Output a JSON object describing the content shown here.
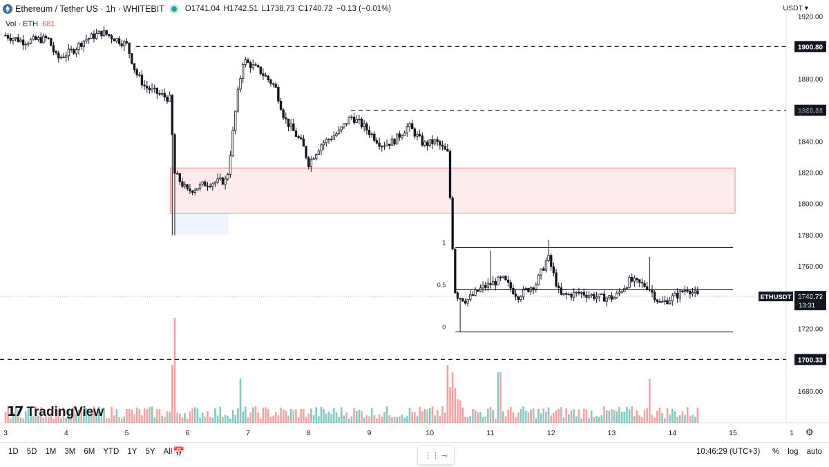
{
  "header": {
    "symbol_title": "Ethereum / Tether US · 1h · WHITEBIT",
    "ohlc": {
      "o": "O1741.04",
      "h": "H1742.51",
      "l": "L1738.73",
      "c": "C1740.72",
      "chg": "−0.13 (−0.01%)"
    }
  },
  "volume_label": {
    "label": "Vol · ETH",
    "value": "681"
  },
  "currency_label": "USDT ▾",
  "logo_text": "TradingView",
  "toolbar": {
    "ranges": [
      "1D",
      "5D",
      "1M",
      "3M",
      "6M",
      "YTD",
      "1Y",
      "5Y",
      "All"
    ],
    "time": "10:46:29 (UTC+3)",
    "options": [
      "%",
      "log",
      "auto"
    ]
  },
  "colors": {
    "up": "#26a69a",
    "down": "#ef5350",
    "candle": "#131722",
    "zone": "#ef5350"
  },
  "chart_data": {
    "type": "candlestick",
    "ylim": [
      1664,
      1925
    ],
    "xlim": [
      3,
      15
    ],
    "y_ticks": [
      1680,
      1700,
      1720,
      1740,
      1760,
      1780,
      1800,
      1820,
      1840,
      1860,
      1880,
      1900,
      1920
    ],
    "y_tick_labels": [
      "1680.00",
      "",
      "1720.00",
      "1740.00",
      "1760.00",
      "1780.00",
      "1800.00",
      "1820.00",
      "1840.00",
      "1860.00",
      "1880.00",
      "",
      "1920.00"
    ],
    "x_ticks": [
      3,
      4,
      5,
      6,
      7,
      8,
      9,
      10,
      11,
      12,
      13,
      14,
      15
    ],
    "x_tick_labels": [
      "3",
      "4",
      "5",
      "6",
      "7",
      "8",
      "9",
      "10",
      "11",
      "12",
      "13",
      "14",
      "15"
    ],
    "close_path": [
      [
        3.0,
        1908
      ],
      [
        3.3,
        1904
      ],
      [
        3.7,
        1906
      ],
      [
        3.85,
        1893
      ],
      [
        4.1,
        1898
      ],
      [
        4.3,
        1905
      ],
      [
        4.6,
        1910
      ],
      [
        4.85,
        1905
      ],
      [
        5.0,
        1902
      ],
      [
        5.15,
        1884
      ],
      [
        5.3,
        1875
      ],
      [
        5.5,
        1871
      ],
      [
        5.72,
        1867
      ],
      [
        5.78,
        1820
      ],
      [
        6.0,
        1808
      ],
      [
        6.3,
        1813
      ],
      [
        6.65,
        1815
      ],
      [
        6.72,
        1836
      ],
      [
        6.82,
        1868
      ],
      [
        6.92,
        1892
      ],
      [
        7.2,
        1885
      ],
      [
        7.45,
        1875
      ],
      [
        7.6,
        1855
      ],
      [
        7.9,
        1838
      ],
      [
        8.0,
        1826
      ],
      [
        8.2,
        1838
      ],
      [
        8.5,
        1846
      ],
      [
        8.7,
        1856
      ],
      [
        8.9,
        1850
      ],
      [
        9.2,
        1838
      ],
      [
        9.4,
        1840
      ],
      [
        9.65,
        1850
      ],
      [
        9.9,
        1838
      ],
      [
        10.1,
        1840
      ],
      [
        10.3,
        1832
      ],
      [
        10.35,
        1790
      ],
      [
        10.42,
        1742
      ],
      [
        10.6,
        1738
      ],
      [
        10.85,
        1746
      ],
      [
        11.2,
        1752
      ],
      [
        11.45,
        1741
      ],
      [
        11.75,
        1749
      ],
      [
        11.95,
        1766
      ],
      [
        12.15,
        1741
      ],
      [
        12.5,
        1743
      ],
      [
        12.8,
        1740
      ],
      [
        13.05,
        1740
      ],
      [
        13.3,
        1751
      ],
      [
        13.6,
        1747
      ],
      [
        13.8,
        1736
      ],
      [
        14.1,
        1742
      ],
      [
        14.25,
        1746
      ],
      [
        14.42,
        1740.72
      ]
    ],
    "volume_spikes": [
      [
        5.78,
        1.0
      ],
      [
        5.74,
        0.55
      ],
      [
        10.3,
        0.55
      ],
      [
        10.38,
        0.48
      ],
      [
        11.15,
        0.48
      ],
      [
        6.88,
        0.42
      ],
      [
        13.62,
        0.42
      ]
    ],
    "levels": [
      {
        "label": "1900.80",
        "y": 1900.8,
        "style": "dashed"
      },
      {
        "label": "1860.00",
        "y": 1860.0,
        "style": "dashed"
      },
      {
        "label": "1700.33",
        "y": 1700.33,
        "style": "dashed"
      }
    ],
    "fibonacci": {
      "levels": [
        {
          "label": "1",
          "y": 1772
        },
        {
          "label": "0.5",
          "y": 1745
        },
        {
          "label": "0",
          "y": 1718
        }
      ],
      "x_start": 10.33,
      "x_end": 15
    },
    "zone": {
      "y_top": 1823,
      "y_bottom": 1794,
      "x_start": 5.72,
      "x_end": 15
    },
    "last_price": {
      "label": "1740.72",
      "ticker": "ETHUSDT",
      "countdown": "13:31",
      "y": 1740.72
    }
  }
}
